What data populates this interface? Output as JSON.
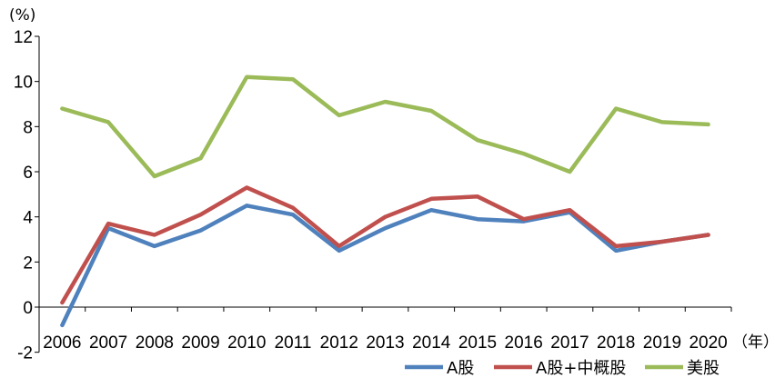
{
  "chart_data": {
    "type": "line",
    "title": "",
    "xlabel": "",
    "ylabel": "",
    "y_unit": "(%)",
    "x_unit": "（年）",
    "ylim": [
      -2,
      12
    ],
    "yticks": [
      "-2",
      "0",
      "2",
      "4",
      "6",
      "8",
      "10",
      "12"
    ],
    "categories": [
      "2006",
      "2007",
      "2008",
      "2009",
      "2010",
      "2011",
      "2012",
      "2013",
      "2014",
      "2015",
      "2016",
      "2017",
      "2018",
      "2019",
      "2020"
    ],
    "grid": false,
    "legend_position": "bottom-right",
    "series": [
      {
        "name": "A股",
        "color": "#4f81bd",
        "values": [
          -0.8,
          3.5,
          2.7,
          3.4,
          4.5,
          4.1,
          2.5,
          3.5,
          4.3,
          3.9,
          3.8,
          4.2,
          2.5,
          2.9,
          3.2
        ]
      },
      {
        "name": "A股+中概股",
        "color": "#c0504d",
        "values": [
          0.2,
          3.7,
          3.2,
          4.1,
          5.3,
          4.4,
          2.7,
          4.0,
          4.8,
          4.9,
          3.9,
          4.3,
          2.7,
          2.9,
          3.2
        ]
      },
      {
        "name": "美股",
        "color": "#9bbb59",
        "values": [
          8.8,
          8.2,
          5.8,
          6.6,
          10.2,
          10.1,
          8.5,
          9.1,
          8.7,
          7.4,
          6.8,
          6.0,
          8.8,
          8.2,
          8.1
        ]
      }
    ]
  }
}
